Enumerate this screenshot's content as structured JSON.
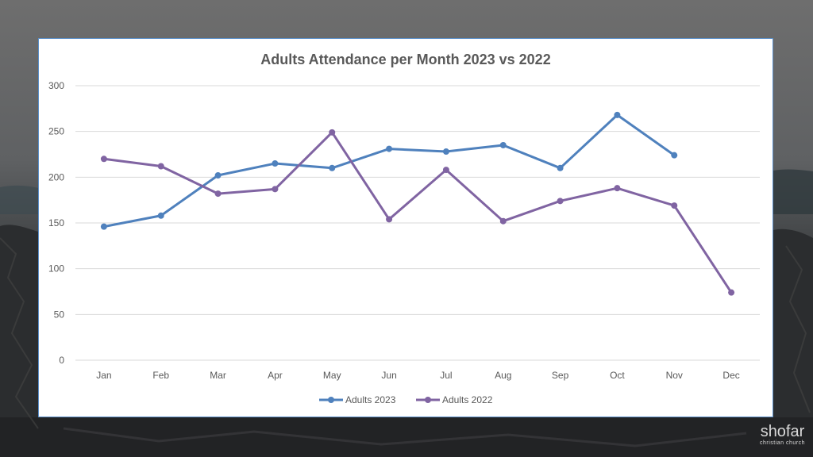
{
  "background": {
    "logo_main": "shofar",
    "logo_sub": "christian church"
  },
  "colors": {
    "series_2023": "#4f81bd",
    "series_2022": "#8064a2",
    "gridline": "#d9d9d9",
    "panel_border": "#5b8fc9"
  },
  "chart_data": {
    "type": "line",
    "title": "Adults Attendance per Month 2023 vs 2022",
    "xlabel": "",
    "ylabel": "",
    "categories": [
      "Jan",
      "Feb",
      "Mar",
      "Apr",
      "May",
      "Jun",
      "Jul",
      "Aug",
      "Sep",
      "Oct",
      "Nov",
      "Dec"
    ],
    "ylim": [
      0,
      300
    ],
    "yticks": [
      0,
      50,
      100,
      150,
      200,
      250,
      300
    ],
    "grid": true,
    "legend_position": "bottom",
    "series": [
      {
        "name": "Adults 2023",
        "color": "#4f81bd",
        "values": [
          146,
          158,
          202,
          215,
          210,
          231,
          228,
          235,
          210,
          268,
          224,
          null
        ]
      },
      {
        "name": "Adults 2022",
        "color": "#8064a2",
        "values": [
          220,
          212,
          182,
          187,
          249,
          154,
          208,
          152,
          174,
          188,
          169,
          74
        ]
      }
    ]
  }
}
